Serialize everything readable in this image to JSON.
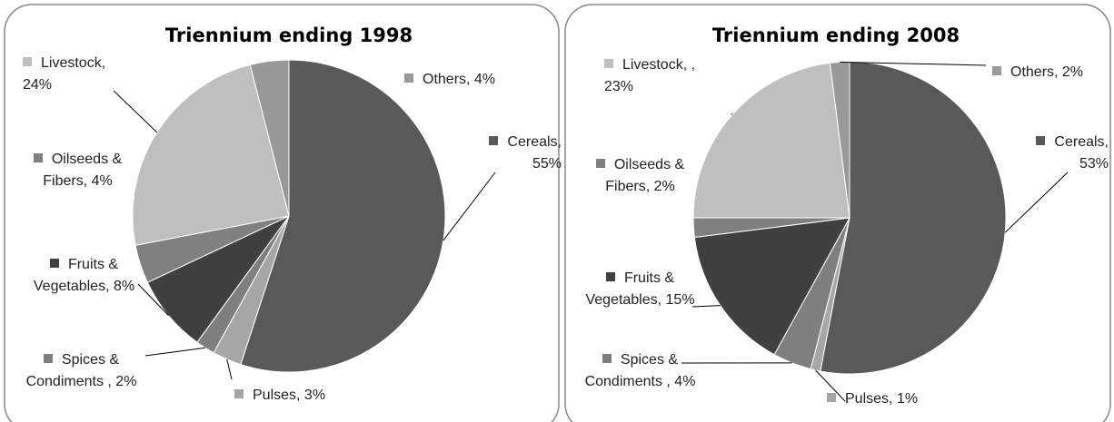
{
  "chart_data": [
    {
      "type": "pie",
      "title": "Triennium ending 1998",
      "values": [
        55,
        3,
        2,
        8,
        4,
        24,
        4
      ],
      "value_labels": [
        "Cereals, 55%",
        "Pulses, 3%",
        "Spices & Condiments , 2%",
        "Fruits & Vegetables, 8%",
        "Oilseeds & Fibers, 4%",
        "Livestock, 24%",
        "Others, 4%"
      ],
      "colors": [
        "#595959",
        "#a6a6a6",
        "#7f7f7f",
        "#404040",
        "#808080",
        "#bfbfbf",
        "#999999"
      ]
    },
    {
      "type": "pie",
      "title": "Triennium ending 2008",
      "values": [
        53,
        1,
        4,
        15,
        2,
        23,
        2
      ],
      "value_labels": [
        "Cereals, 53%",
        "Pulses, 1%",
        "Spices & Condiments , 4%",
        "Fruits & Vegetables, 15%",
        "Oilseeds & Fibers, 2%",
        "Livestock, , 23%",
        "Others, 2%"
      ],
      "colors": [
        "#595959",
        "#a6a6a6",
        "#7f7f7f",
        "#404040",
        "#808080",
        "#bfbfbf",
        "#999999"
      ]
    }
  ]
}
